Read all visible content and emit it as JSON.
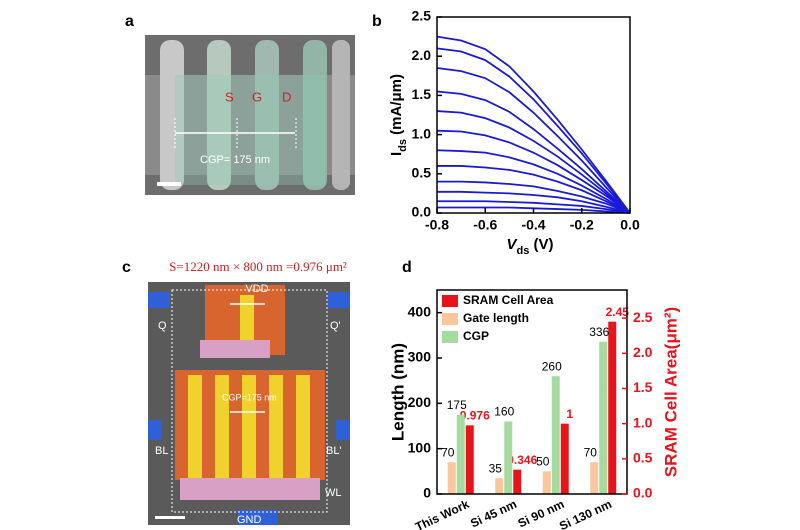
{
  "images": [
    {
      "panel": "a",
      "texts": [
        "S",
        "G",
        "D",
        "CGP= 175 nm"
      ]
    },
    {
      "panel": "c",
      "title": "S=1220 nm × 800 nm =0.976 μm²",
      "texts": [
        "VDD",
        "Q",
        "Q'",
        "BL",
        "BL'",
        "WL",
        "GND",
        "CGP=175 nm"
      ]
    }
  ],
  "chart_data": [
    {
      "panel": "b",
      "type": "line",
      "color": "#1a1ad6",
      "ylabel": {
        "main": "I",
        "sub": "ds",
        "unit": " (mA/μm)"
      },
      "xlabel": {
        "main": "V",
        "sub": "ds",
        "unit": " (V)"
      },
      "x": [
        -0.8,
        -0.7,
        -0.6,
        -0.5,
        -0.4,
        -0.3,
        -0.2,
        -0.1,
        0
      ],
      "series": [
        {
          "values": [
            2.25,
            2.2,
            2.09,
            1.87,
            1.55,
            1.19,
            0.81,
            0.41,
            0
          ]
        },
        {
          "values": [
            2.1,
            2.06,
            1.95,
            1.74,
            1.45,
            1.11,
            0.76,
            0.38,
            0
          ]
        },
        {
          "values": [
            1.85,
            1.81,
            1.72,
            1.54,
            1.28,
            0.98,
            0.67,
            0.33,
            0
          ]
        },
        {
          "values": [
            1.55,
            1.52,
            1.44,
            1.29,
            1.07,
            0.82,
            0.56,
            0.28,
            0
          ]
        },
        {
          "values": [
            1.3,
            1.28,
            1.21,
            1.09,
            0.92,
            0.72,
            0.49,
            0.25,
            0
          ]
        },
        {
          "values": [
            1.05,
            1.04,
            0.99,
            0.9,
            0.77,
            0.61,
            0.42,
            0.22,
            0
          ]
        },
        {
          "values": [
            0.8,
            0.79,
            0.77,
            0.71,
            0.62,
            0.5,
            0.35,
            0.18,
            0
          ]
        },
        {
          "values": [
            0.6,
            0.6,
            0.58,
            0.55,
            0.49,
            0.4,
            0.29,
            0.15,
            0
          ]
        },
        {
          "values": [
            0.4,
            0.4,
            0.39,
            0.37,
            0.34,
            0.28,
            0.21,
            0.12,
            0
          ]
        },
        {
          "values": [
            0.27,
            0.27,
            0.26,
            0.25,
            0.23,
            0.2,
            0.15,
            0.08,
            0
          ]
        },
        {
          "values": [
            0.15,
            0.15,
            0.15,
            0.14,
            0.13,
            0.11,
            0.09,
            0.05,
            0
          ]
        },
        {
          "values": [
            0.07,
            0.07,
            0.07,
            0.07,
            0.06,
            0.05,
            0.04,
            0.02,
            0
          ]
        }
      ],
      "xlim": [
        -0.8,
        0
      ],
      "xticks": [
        -0.8,
        -0.6,
        -0.4,
        -0.2,
        {
          "value": 0,
          "label": "0.0"
        }
      ],
      "ylim": [
        0,
        2.5
      ],
      "yticks": [
        {
          "value": 0,
          "label": "0.0"
        },
        0.5,
        {
          "value": 1,
          "label": "1.0"
        },
        1.5,
        {
          "value": 2,
          "label": "2.0"
        },
        2.5
      ]
    },
    {
      "panel": "d",
      "type": "bar",
      "ylabel": "Length (nm)",
      "y2label": "SRAM Cell Area(μm²)",
      "categories": [
        "This Work",
        "Si 45 nm",
        "Si 90 nm",
        "Si 130 nm"
      ],
      "series": [
        {
          "name": "SRAM Cell Area",
          "color": "#e8141b",
          "axis": "y2",
          "values": [
            0.976,
            0.346,
            1,
            2.45
          ]
        },
        {
          "name": "Gate length",
          "color": "#f9c79d",
          "values": [
            70,
            35,
            50,
            70
          ]
        },
        {
          "name": "CGP",
          "color": "#a6dba0",
          "values": [
            175,
            160,
            260,
            336
          ]
        }
      ],
      "ylim": [
        0,
        450
      ],
      "yticks": [
        0,
        100,
        200,
        300,
        400
      ],
      "y2lim": [
        0,
        2.9
      ],
      "y2ticks": [
        {
          "value": 0,
          "label": "0.0"
        },
        0.5,
        {
          "value": 1,
          "label": "1.0"
        },
        1.5,
        {
          "value": 2,
          "label": "2.0"
        },
        2.5
      ]
    }
  ]
}
